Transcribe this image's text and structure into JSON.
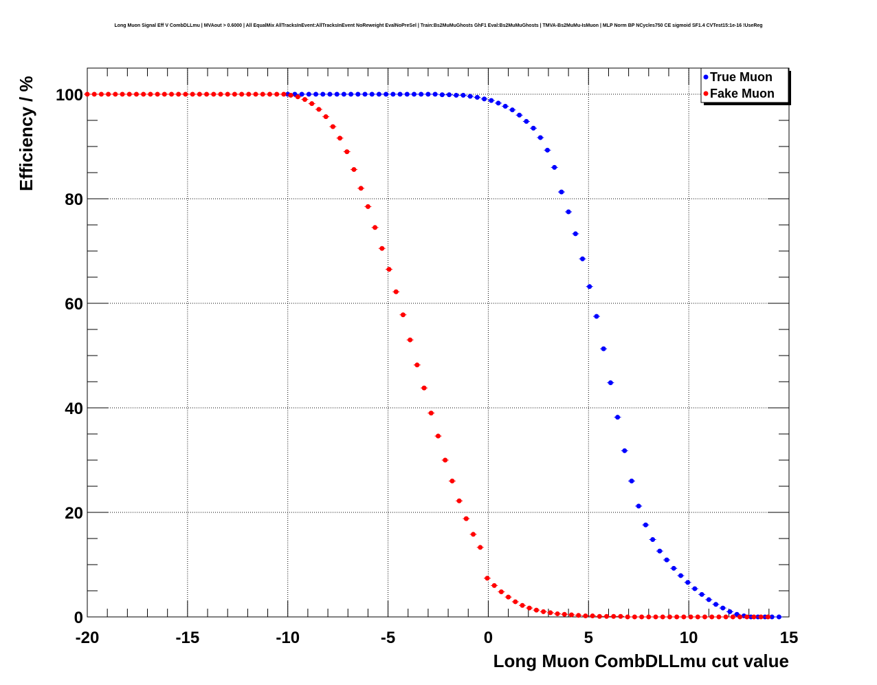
{
  "chart_data": {
    "type": "scatter",
    "title": "Long Muon Signal Eff V CombDLLmu | MVAout > 0.6000 | All EqualMix AllTracksInEvent:AllTracksInEvent NoReweight EvalNoPreSel | Train:Bs2MuMuGhosts GhF1 Eval:Bs2MuMuGhosts | TMVA-Bs2MuMu-IsMuon | MLP Norm BP NCycles750 CE sigmoid SF1.4 CVTest15:1e-16 !UseReg",
    "xlabel": "Long Muon CombDLLmu cut value",
    "ylabel": "Efficiency / %",
    "xlim": [
      -20,
      15
    ],
    "ylim": [
      0,
      105
    ],
    "x_ticks": [
      "-20",
      "-15",
      "-10",
      "-5",
      "0",
      "5",
      "10",
      "15"
    ],
    "y_ticks": [
      "0",
      "20",
      "40",
      "60",
      "80",
      "100"
    ],
    "grid": true,
    "legend_position": "top-right",
    "colors": {
      "true_muon": "#0000ff",
      "fake_muon": "#ff0000"
    },
    "series": [
      {
        "name": "True Muon",
        "x": [
          -10.0,
          -9.65,
          -9.3,
          -8.95,
          -8.6,
          -8.25,
          -7.9,
          -7.55,
          -7.2,
          -6.85,
          -6.5,
          -6.15,
          -5.8,
          -5.45,
          -5.1,
          -4.75,
          -4.4,
          -4.05,
          -3.7,
          -3.35,
          -3.0,
          -2.65,
          -2.3,
          -1.95,
          -1.6,
          -1.25,
          -0.9,
          -0.55,
          -0.2,
          0.15,
          0.5,
          0.85,
          1.2,
          1.55,
          1.9,
          2.25,
          2.6,
          2.95,
          3.3,
          3.65,
          4.0,
          4.35,
          4.7,
          5.05,
          5.4,
          5.75,
          6.1,
          6.45,
          6.8,
          7.15,
          7.5,
          7.85,
          8.2,
          8.55,
          8.9,
          9.25,
          9.6,
          9.95,
          10.3,
          10.65,
          11.0,
          11.35,
          11.7,
          12.05,
          12.4,
          12.75,
          13.1,
          13.45,
          13.8,
          14.15,
          14.5
        ],
        "values": [
          100.0,
          100.0,
          100.0,
          100.0,
          100.0,
          100.0,
          100.0,
          100.0,
          100.0,
          100.0,
          100.0,
          100.0,
          100.0,
          100.0,
          100.0,
          100.0,
          100.0,
          100.0,
          100.0,
          100.0,
          100.0,
          100.0,
          99.9,
          99.9,
          99.8,
          99.8,
          99.6,
          99.4,
          99.1,
          98.8,
          98.3,
          97.7,
          97.0,
          96.0,
          94.8,
          93.5,
          91.7,
          89.3,
          86.0,
          81.3,
          77.5,
          73.3,
          68.5,
          63.2,
          57.5,
          51.3,
          44.8,
          38.2,
          31.8,
          26.0,
          21.2,
          17.6,
          14.8,
          12.6,
          10.9,
          9.3,
          7.9,
          6.6,
          5.4,
          4.3,
          3.3,
          2.4,
          1.7,
          1.0,
          0.5,
          0.2,
          0.0,
          0.0,
          0.0,
          0.0,
          0.0
        ]
      },
      {
        "name": "Fake Muon",
        "x": [
          -20.0,
          -19.65,
          -19.3,
          -18.95,
          -18.6,
          -18.25,
          -17.9,
          -17.55,
          -17.2,
          -16.85,
          -16.5,
          -16.15,
          -15.8,
          -15.45,
          -15.1,
          -14.75,
          -14.4,
          -14.05,
          -13.7,
          -13.35,
          -13.0,
          -12.65,
          -12.3,
          -11.95,
          -11.6,
          -11.25,
          -10.9,
          -10.55,
          -10.2,
          -9.85,
          -9.5,
          -9.15,
          -8.8,
          -8.45,
          -8.1,
          -7.75,
          -7.4,
          -7.05,
          -6.7,
          -6.35,
          -6.0,
          -5.65,
          -5.3,
          -4.95,
          -4.6,
          -4.25,
          -3.9,
          -3.55,
          -3.2,
          -2.85,
          -2.5,
          -2.15,
          -1.8,
          -1.45,
          -1.1,
          -0.75,
          -0.4,
          -0.05,
          0.3,
          0.65,
          1.0,
          1.35,
          1.7,
          2.05,
          2.4,
          2.75,
          3.1,
          3.45,
          3.8,
          4.15,
          4.5,
          4.85,
          5.2,
          5.55,
          5.9,
          6.25,
          6.6,
          6.95,
          7.3,
          7.65,
          8.0,
          8.35,
          8.7,
          9.05,
          9.4,
          9.75,
          10.1,
          10.45,
          10.8,
          11.15,
          11.5,
          11.85,
          12.2,
          12.55,
          12.9,
          13.25,
          13.6,
          13.95
        ],
        "values": [
          100.0,
          100.0,
          100.0,
          100.0,
          100.0,
          100.0,
          100.0,
          100.0,
          100.0,
          100.0,
          100.0,
          100.0,
          100.0,
          100.0,
          100.0,
          100.0,
          100.0,
          100.0,
          100.0,
          100.0,
          100.0,
          100.0,
          100.0,
          100.0,
          100.0,
          100.0,
          100.0,
          100.0,
          100.0,
          99.8,
          99.5,
          99.0,
          98.2,
          97.1,
          95.7,
          93.8,
          91.6,
          89.0,
          85.6,
          82.0,
          78.5,
          74.5,
          70.5,
          66.5,
          62.2,
          57.8,
          53.0,
          48.2,
          43.8,
          39.0,
          34.6,
          30.0,
          26.0,
          22.2,
          18.8,
          15.8,
          13.3,
          7.4,
          6.0,
          4.8,
          3.8,
          2.9,
          2.2,
          1.7,
          1.3,
          1.0,
          0.8,
          0.6,
          0.5,
          0.4,
          0.3,
          0.2,
          0.2,
          0.1,
          0.1,
          0.1,
          0.1,
          0.0,
          0.0,
          0.0,
          0.0,
          0.0,
          0.0,
          0.0,
          0.0,
          0.0,
          0.0,
          0.0,
          0.0,
          0.0,
          0.0,
          0.0,
          0.0,
          0.0,
          0.0,
          0.0,
          0.0,
          0.0
        ]
      }
    ]
  }
}
